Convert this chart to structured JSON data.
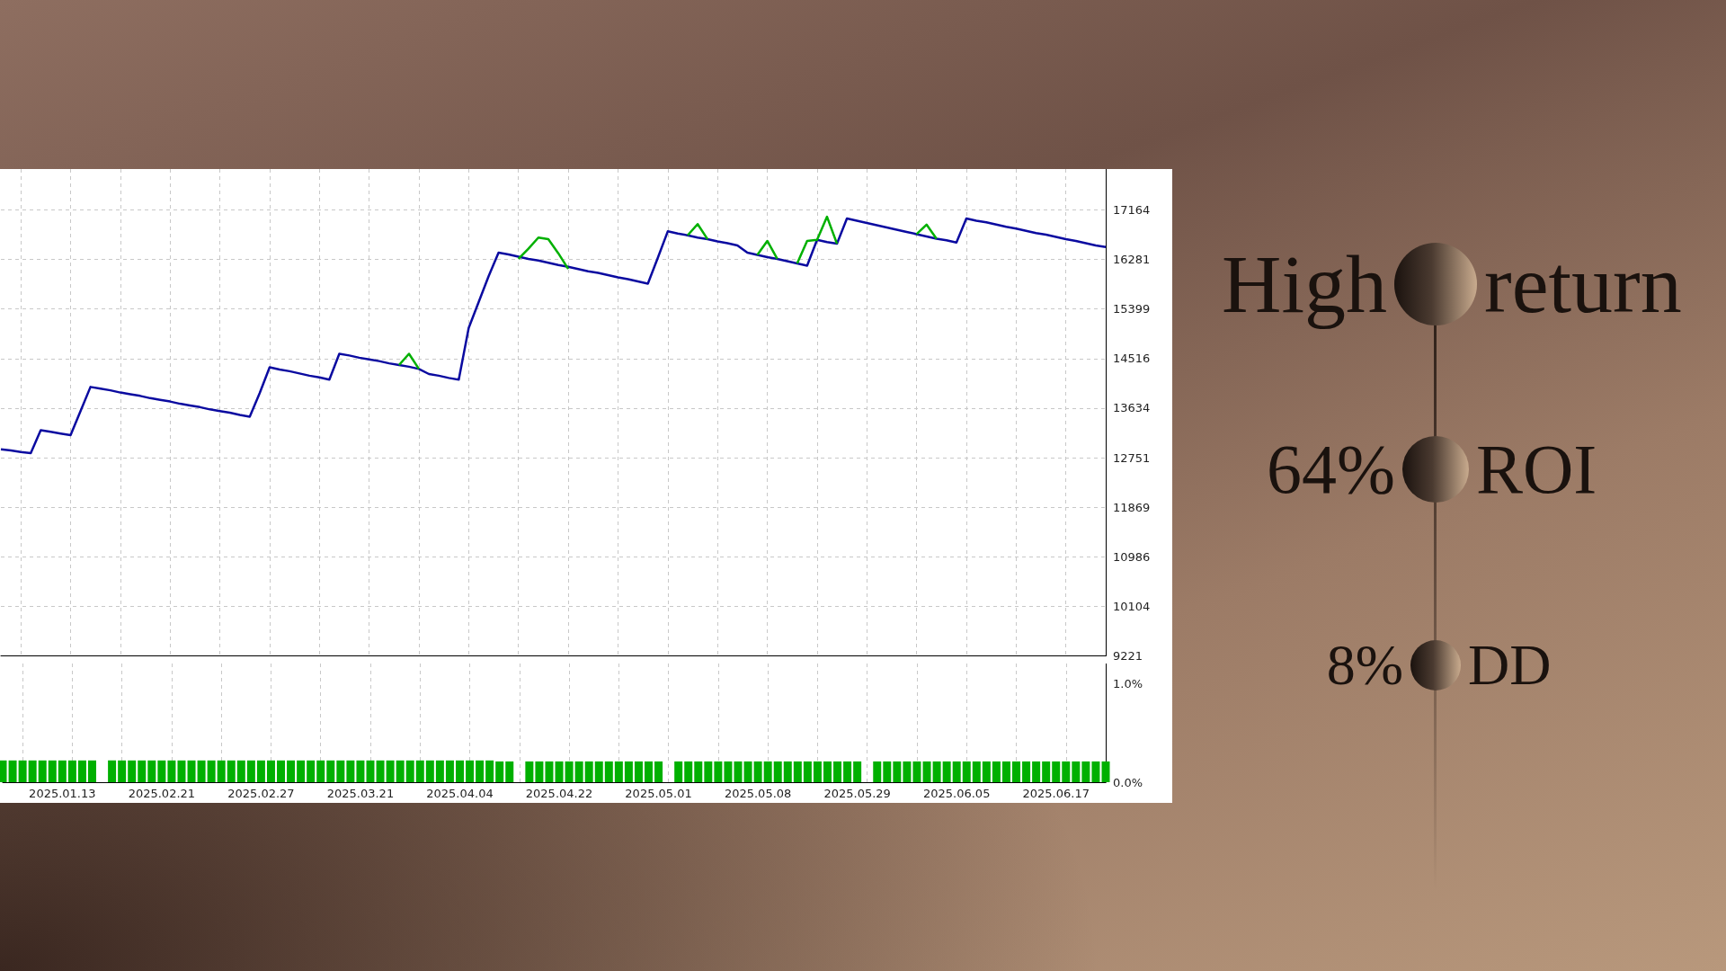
{
  "chart_data": [
    {
      "type": "line",
      "ylim": [
        9221,
        17890
      ],
      "categories": [
        null,
        null,
        null,
        null,
        null,
        null,
        "2025.01.13",
        null,
        null,
        null,
        null,
        null,
        null,
        null,
        null,
        null,
        "2025.02.21",
        null,
        null,
        null,
        null,
        null,
        null,
        null,
        null,
        null,
        "2025.02.27",
        null,
        null,
        null,
        null,
        null,
        null,
        null,
        null,
        null,
        "2025.03.21",
        null,
        null,
        null,
        null,
        null,
        null,
        null,
        null,
        null,
        "2025.04.04",
        null,
        null,
        null,
        null,
        null,
        null,
        null,
        null,
        null,
        "2025.04.22",
        null,
        null,
        null,
        null,
        null,
        null,
        null,
        null,
        null,
        "2025.05.01",
        null,
        null,
        null,
        null,
        null,
        null,
        null,
        null,
        null,
        "2025.05.08",
        null,
        null,
        null,
        null,
        null,
        null,
        null,
        null,
        null,
        "2025.05.29",
        null,
        null,
        null,
        null,
        null,
        null,
        null,
        null,
        null,
        "2025.06.05",
        null,
        null,
        null,
        null,
        null,
        null,
        null,
        null,
        null,
        "2025.06.17",
        null,
        null,
        null,
        null,
        null
      ],
      "yticks": [
        9221,
        10104,
        10986,
        11869,
        12751,
        13634,
        14516,
        15399,
        16281,
        17164
      ],
      "grid": true,
      "tick_labels": "y",
      "series": [
        {
          "color": "#0a0aa0",
          "values": [
            12900,
            12880,
            12850,
            12830,
            13240,
            13210,
            13180,
            13150,
            13580,
            14010,
            13980,
            13950,
            13910,
            13880,
            13850,
            13810,
            13780,
            13750,
            13710,
            13680,
            13650,
            13610,
            13580,
            13550,
            13510,
            13480,
            13900,
            14360,
            14320,
            14290,
            14250,
            14210,
            14180,
            14140,
            14600,
            14570,
            14530,
            14500,
            14470,
            14430,
            14400,
            14370,
            14330,
            14240,
            14210,
            14170,
            14140,
            15060,
            15520,
            15980,
            16400,
            16370,
            16330,
            16290,
            16260,
            16220,
            16180,
            16150,
            16110,
            16070,
            16040,
            16000,
            15960,
            15930,
            15890,
            15850,
            16310,
            16780,
            16740,
            16710,
            16670,
            16640,
            16600,
            16570,
            16530,
            16400,
            16360,
            16320,
            16290,
            16250,
            16210,
            16170,
            16630,
            16590,
            16560,
            17010,
            16970,
            16930,
            16890,
            16850,
            16810,
            16770,
            16730,
            16690,
            16650,
            16620,
            16580,
            17010,
            16970,
            16940,
            16900,
            16860,
            16830,
            16790,
            16750,
            16720,
            16680,
            16640,
            16610,
            16570,
            16530,
            16500
          ]
        },
        {
          "color": "#00b000",
          "values": [
            null,
            null,
            null,
            null,
            null,
            null,
            null,
            null,
            null,
            null,
            null,
            null,
            null,
            null,
            null,
            null,
            null,
            null,
            null,
            null,
            null,
            null,
            null,
            null,
            null,
            null,
            null,
            null,
            null,
            null,
            null,
            null,
            null,
            null,
            null,
            null,
            null,
            null,
            null,
            null,
            14400,
            14600,
            14330,
            null,
            null,
            null,
            null,
            null,
            null,
            null,
            null,
            null,
            16290,
            16470,
            16670,
            16640,
            16390,
            16110,
            null,
            null,
            null,
            null,
            null,
            null,
            null,
            null,
            null,
            null,
            null,
            16710,
            16910,
            16640,
            null,
            null,
            null,
            null,
            16360,
            16610,
            16290,
            null,
            16210,
            16610,
            16630,
            17040,
            16560,
            null,
            null,
            null,
            null,
            null,
            null,
            null,
            16730,
            16900,
            16650,
            null,
            null,
            null,
            null,
            null,
            null,
            null,
            null,
            null,
            null,
            null,
            null,
            null,
            null,
            null,
            null,
            null
          ]
        }
      ]
    },
    {
      "type": "bar",
      "ylim": [
        0,
        1.2
      ],
      "categories": [
        null,
        null,
        null,
        null,
        null,
        null,
        "2025.01.13",
        null,
        null,
        null,
        null,
        null,
        null,
        null,
        null,
        null,
        "2025.02.21",
        null,
        null,
        null,
        null,
        null,
        null,
        null,
        null,
        null,
        "2025.02.27",
        null,
        null,
        null,
        null,
        null,
        null,
        null,
        null,
        null,
        "2025.03.21",
        null,
        null,
        null,
        null,
        null,
        null,
        null,
        null,
        null,
        "2025.04.04",
        null,
        null,
        null,
        null,
        null,
        null,
        null,
        null,
        null,
        "2025.04.22",
        null,
        null,
        null,
        null,
        null,
        null,
        null,
        null,
        null,
        "2025.05.01",
        null,
        null,
        null,
        null,
        null,
        null,
        null,
        null,
        null,
        "2025.05.08",
        null,
        null,
        null,
        null,
        null,
        null,
        null,
        null,
        null,
        "2025.05.29",
        null,
        null,
        null,
        null,
        null,
        null,
        null,
        null,
        null,
        "2025.06.05",
        null,
        null,
        null,
        null,
        null,
        null,
        null,
        null,
        null,
        "2025.06.17",
        null,
        null,
        null,
        null,
        null
      ],
      "yticks": [
        {
          "value": 0,
          "label": "0.0%"
        },
        {
          "value": 1,
          "label": "1.0%"
        }
      ],
      "grid": "x",
      "series": [
        {
          "color": "#00b000",
          "values": [
            0.22,
            0.22,
            0.22,
            0.22,
            0.22,
            0.22,
            0.22,
            0.22,
            0.22,
            0.22,
            null,
            0.22,
            0.22,
            0.22,
            0.22,
            0.22,
            0.22,
            0.22,
            0.22,
            0.22,
            0.22,
            0.22,
            0.22,
            0.22,
            0.22,
            0.22,
            0.22,
            0.22,
            0.22,
            0.22,
            0.22,
            0.22,
            0.22,
            0.22,
            0.22,
            0.22,
            0.22,
            0.22,
            0.22,
            0.22,
            0.22,
            0.22,
            0.22,
            0.22,
            0.22,
            0.22,
            0.22,
            0.22,
            0.22,
            0.22,
            0.21,
            0.21,
            null,
            0.21,
            0.21,
            0.21,
            0.21,
            0.21,
            0.21,
            0.21,
            0.21,
            0.21,
            0.21,
            0.21,
            0.21,
            0.21,
            0.21,
            null,
            0.21,
            0.21,
            0.21,
            0.21,
            0.21,
            0.21,
            0.21,
            0.21,
            0.21,
            0.21,
            0.21,
            0.21,
            0.21,
            0.21,
            0.21,
            0.21,
            0.21,
            0.21,
            0.21,
            null,
            0.21,
            0.21,
            0.21,
            0.21,
            0.21,
            0.21,
            0.21,
            0.21,
            0.21,
            0.21,
            0.21,
            0.21,
            0.21,
            0.21,
            0.21,
            0.21,
            0.21,
            0.21,
            0.21,
            0.21,
            0.21,
            0.21,
            0.21,
            0.21
          ]
        }
      ]
    },
    {
      "type": "other",
      "annotations": [
        "High",
        "return",
        "64%",
        "ROI",
        "8%",
        "DD"
      ]
    }
  ]
}
